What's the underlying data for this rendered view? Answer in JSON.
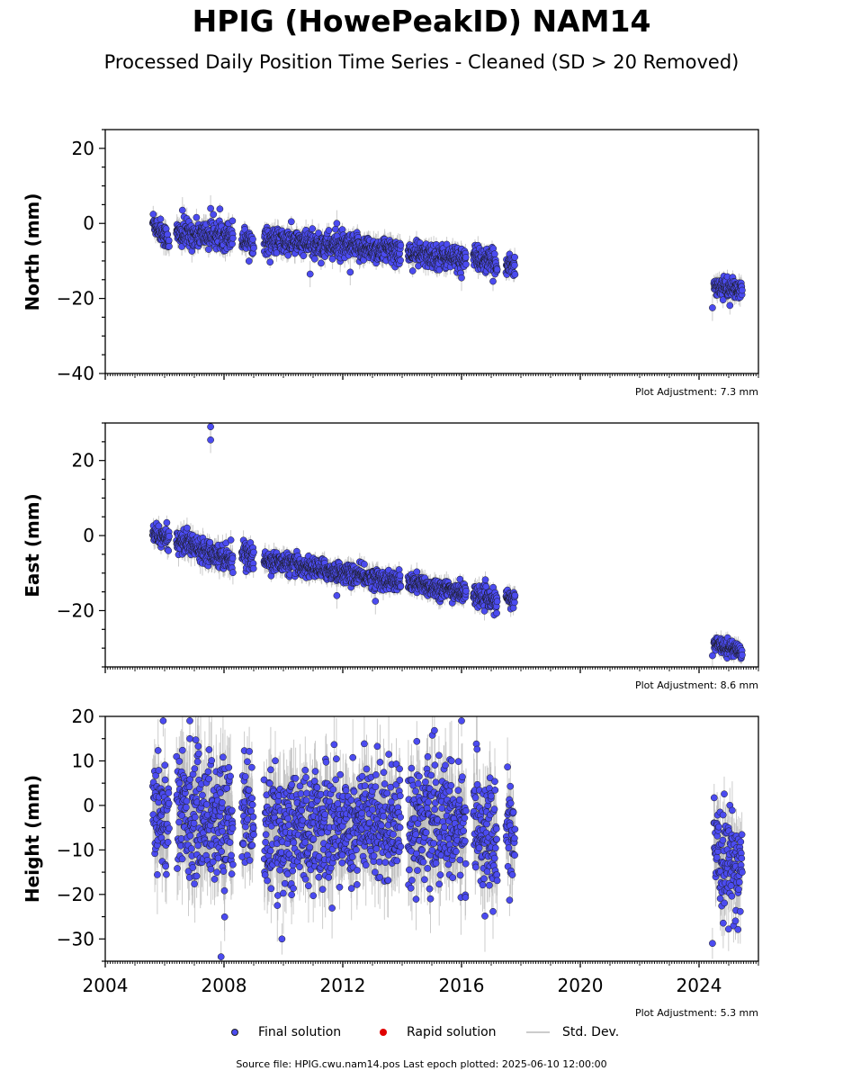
{
  "title": "HPIG (HowePeakID) NAM14",
  "subtitle": "Processed Daily Position Time Series - Cleaned (SD > 20 Removed)",
  "source": "Source file: HPIG.cwu.nam14.pos  Last epoch plotted: 2025-06-10 12:00:00",
  "legend": {
    "final": "Final solution",
    "rapid": "Rapid solution",
    "std": "Std. Dev."
  },
  "colors": {
    "final": "#4b4bf0",
    "final_edge": "#1a1a1a",
    "rapid": "#e00000",
    "std": "#bbbbbb"
  },
  "chart_data": [
    {
      "type": "scatter",
      "ylabel": "North (mm)",
      "ylim": [
        -40,
        25
      ],
      "xlim": [
        2004,
        2026
      ],
      "yticks": [
        20,
        0,
        -20,
        -40
      ],
      "adjustment": "Plot Adjustment: 7.3 mm",
      "series": [
        {
          "name": "Final solution",
          "segments": [
            {
              "t0": 2005.6,
              "t1": 2006.15,
              "y0": 0.5,
              "y1": -4.5,
              "sd": 1.5,
              "err": 1.8
            },
            {
              "t0": 2006.4,
              "t1": 2008.3,
              "y0": -3.0,
              "y1": -3.0,
              "sd": 1.8,
              "err": 2.2
            },
            {
              "t0": 2008.6,
              "t1": 2009.0,
              "y0": -4.0,
              "y1": -5.0,
              "sd": 1.6,
              "err": 1.8
            },
            {
              "t0": 2009.35,
              "t1": 2013.95,
              "y0": -4.5,
              "y1": -7.5,
              "sd": 1.7,
              "err": 2.0
            },
            {
              "t0": 2014.2,
              "t1": 2016.15,
              "y0": -8.0,
              "y1": -9.5,
              "sd": 1.6,
              "err": 1.8
            },
            {
              "t0": 2016.4,
              "t1": 2017.2,
              "y0": -9.0,
              "y1": -11.0,
              "sd": 1.6,
              "err": 1.8
            },
            {
              "t0": 2017.5,
              "t1": 2017.8,
              "y0": -10.5,
              "y1": -11.5,
              "sd": 1.5,
              "err": 1.8
            },
            {
              "t0": 2024.5,
              "t1": 2025.45,
              "y0": -16.5,
              "y1": -18.0,
              "sd": 1.2,
              "err": 1.8
            }
          ],
          "points": [
            {
              "x": 2006.6,
              "y": 3.5
            },
            {
              "x": 2007.55,
              "y": 4.0
            },
            {
              "x": 2011.8,
              "y": 0.0
            },
            {
              "x": 2010.9,
              "y": -13.5
            },
            {
              "x": 2012.25,
              "y": -13.0
            },
            {
              "x": 2016.0,
              "y": -14.5
            },
            {
              "x": 2024.45,
              "y": -22.5
            }
          ]
        }
      ]
    },
    {
      "type": "scatter",
      "ylabel": "East (mm)",
      "ylim": [
        -35,
        30
      ],
      "xlim": [
        2004,
        2026
      ],
      "yticks": [
        20,
        0,
        -20
      ],
      "adjustment": "Plot Adjustment: 8.6 mm",
      "series": [
        {
          "name": "Final solution",
          "segments": [
            {
              "t0": 2005.6,
              "t1": 2006.15,
              "y0": 0.5,
              "y1": -1.0,
              "sd": 1.3,
              "err": 1.8
            },
            {
              "t0": 2006.4,
              "t1": 2008.3,
              "y0": -1.0,
              "y1": -6.5,
              "sd": 1.5,
              "err": 2.2
            },
            {
              "t0": 2008.6,
              "t1": 2009.0,
              "y0": -4.0,
              "y1": -6.5,
              "sd": 1.5,
              "err": 1.8
            },
            {
              "t0": 2009.35,
              "t1": 2013.95,
              "y0": -6.5,
              "y1": -12.5,
              "sd": 1.3,
              "err": 1.8
            },
            {
              "t0": 2014.2,
              "t1": 2016.15,
              "y0": -12.5,
              "y1": -15.5,
              "sd": 1.3,
              "err": 1.8
            },
            {
              "t0": 2016.4,
              "t1": 2017.2,
              "y0": -15.5,
              "y1": -18.0,
              "sd": 1.3,
              "err": 1.8
            },
            {
              "t0": 2017.5,
              "t1": 2017.8,
              "y0": -16.5,
              "y1": -17.5,
              "sd": 1.2,
              "err": 1.8
            },
            {
              "t0": 2024.5,
              "t1": 2025.45,
              "y0": -28.5,
              "y1": -31.0,
              "sd": 1.0,
              "err": 1.5
            }
          ],
          "points": [
            {
              "x": 2007.55,
              "y": 29.0
            },
            {
              "x": 2007.55,
              "y": 25.5
            },
            {
              "x": 2011.8,
              "y": -16.0
            },
            {
              "x": 2013.1,
              "y": -17.5
            },
            {
              "x": 2024.45,
              "y": -32.0
            }
          ]
        }
      ]
    },
    {
      "type": "scatter",
      "ylabel": "Height (mm)",
      "ylim": [
        -35,
        20
      ],
      "xlim": [
        2004,
        2026
      ],
      "yticks": [
        20,
        10,
        0,
        -10,
        -20,
        -30
      ],
      "xticks": [
        "2004",
        "2008",
        "2012",
        "2016",
        "2020",
        "2024"
      ],
      "adjustment": "Plot Adjustment: 5.3 mm",
      "series": [
        {
          "name": "Final solution",
          "segments": [
            {
              "t0": 2005.6,
              "t1": 2006.15,
              "y0": 0.0,
              "y1": -3.0,
              "sd": 6.5,
              "err": 6.0
            },
            {
              "t0": 2006.4,
              "t1": 2008.3,
              "y0": -1.0,
              "y1": -4.0,
              "sd": 7.0,
              "err": 7.0
            },
            {
              "t0": 2008.6,
              "t1": 2009.0,
              "y0": 0.0,
              "y1": -3.0,
              "sd": 6.0,
              "err": 6.0
            },
            {
              "t0": 2009.35,
              "t1": 2013.95,
              "y0": -6.0,
              "y1": -3.0,
              "sd": 6.5,
              "err": 6.5
            },
            {
              "t0": 2014.2,
              "t1": 2016.15,
              "y0": -3.0,
              "y1": -5.0,
              "sd": 6.5,
              "err": 6.5
            },
            {
              "t0": 2016.4,
              "t1": 2017.2,
              "y0": -3.0,
              "y1": -10.0,
              "sd": 6.5,
              "err": 6.0
            },
            {
              "t0": 2017.5,
              "t1": 2017.8,
              "y0": -5.0,
              "y1": -8.0,
              "sd": 5.0,
              "err": 5.0
            },
            {
              "t0": 2024.5,
              "t1": 2025.45,
              "y0": -12.0,
              "y1": -14.0,
              "sd": 5.5,
              "err": 5.0
            }
          ],
          "points": [
            {
              "x": 2005.95,
              "y": 19.0
            },
            {
              "x": 2006.85,
              "y": 19.0
            },
            {
              "x": 2007.9,
              "y": -34.0
            },
            {
              "x": 2009.95,
              "y": -30.0
            },
            {
              "x": 2016.0,
              "y": 19.0
            },
            {
              "x": 2024.45,
              "y": -31.0
            }
          ]
        }
      ]
    }
  ]
}
